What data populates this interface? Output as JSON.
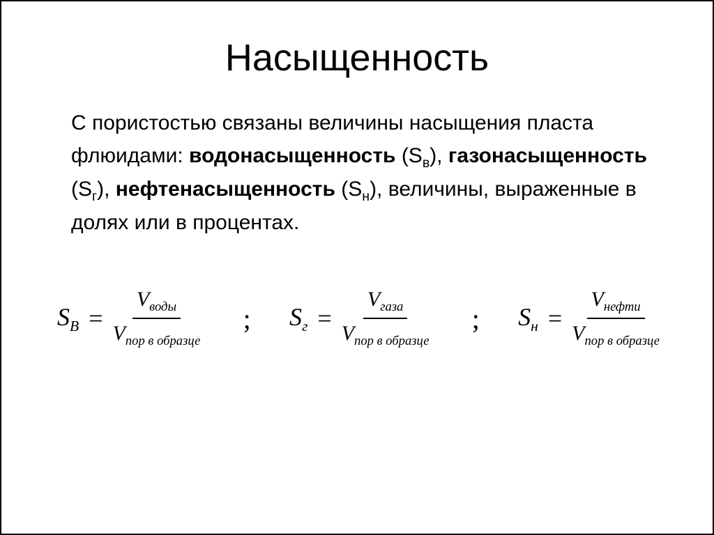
{
  "title": "Насыщенность",
  "paragraph": {
    "p1": "С пористостью связаны величины насыщения пласта флюидами: ",
    "b1": "водонасыщенность",
    "p2": " (S",
    "sub1": "в",
    "p3": "), ",
    "b2": "газонасыщенность",
    "p4": " (S",
    "sub2": "г",
    "p5": "), ",
    "b3": "нефтенасыщенность",
    "p6": " (S",
    "sub3": "н",
    "p7": "), величины, выраженные в долях или в процентах."
  },
  "formulas": {
    "eq1": {
      "lhs_base": "S",
      "lhs_sub": "В",
      "num_base": "V",
      "num_sub": "воды",
      "den_base": "V",
      "den_sub": "пор в образце"
    },
    "eq2": {
      "lhs_base": "S",
      "lhs_sub": "г",
      "num_base": "V",
      "num_sub": "газа",
      "den_base": "V",
      "den_sub": "пор в образце"
    },
    "eq3": {
      "lhs_base": "S",
      "lhs_sub": "н",
      "num_base": "V",
      "num_sub": "нефти",
      "den_base": "V",
      "den_sub": "пор в образце"
    },
    "equals": "=",
    "separator": ";"
  },
  "colors": {
    "text": "#000000",
    "background": "#ffffff",
    "border": "#000000"
  }
}
